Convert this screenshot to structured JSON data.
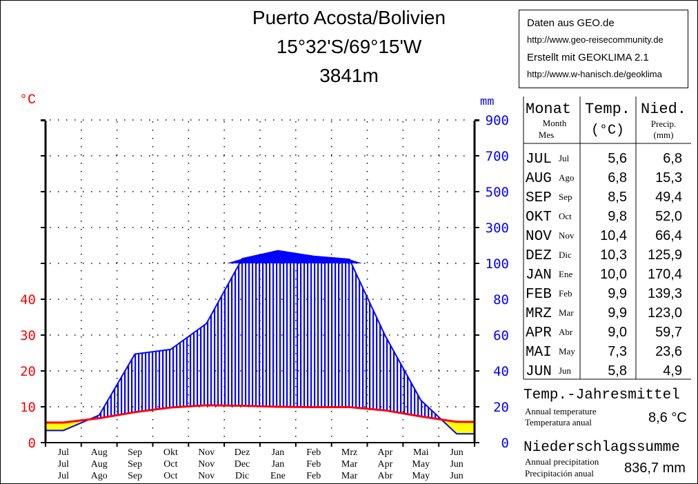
{
  "header": {
    "station": "Puerto Acosta/Bolivien",
    "coordinates": "15°32'S/69°15'W",
    "elevation": "3841m"
  },
  "credit": {
    "line1": "Daten aus GEO.de",
    "line2": "http://www.geo-reisecommunity.de",
    "line3": "Erstellt mit GEOKLIMA 2.1",
    "line4": "http://www.w-hanisch.de/geoklima"
  },
  "axes": {
    "left_unit": "°C",
    "right_unit": "mm",
    "temp_ticks": [
      "0",
      "10",
      "20",
      "30",
      "40"
    ],
    "precip_ticks": [
      "0",
      "20",
      "40",
      "60",
      "80",
      "100",
      "300",
      "500",
      "700",
      "900"
    ]
  },
  "months_de": [
    "Jul",
    "Aug",
    "Sep",
    "Okt",
    "Nov",
    "Dez",
    "Jan",
    "Feb",
    "Mrz",
    "Apr",
    "Mai",
    "Jun"
  ],
  "months_en": [
    "Jul",
    "Aug",
    "Sep",
    "Oct",
    "Nov",
    "Dec",
    "Jan",
    "Feb",
    "Mar",
    "Apr",
    "May",
    "Jun"
  ],
  "months_es": [
    "Jul",
    "Ago",
    "Sep",
    "Oct",
    "Nov",
    "Dic",
    "Ene",
    "Feb",
    "Mar",
    "Abr",
    "May",
    "Jun"
  ],
  "months_table": [
    "JUL",
    "AUG",
    "SEP",
    "OKT",
    "NOV",
    "DEZ",
    "JAN",
    "FEB",
    "MRZ",
    "APR",
    "MAI",
    "JUN"
  ],
  "table": {
    "col1": "Monat",
    "col1_sub1": "Month",
    "col1_sub2": "Mes",
    "col2": "Temp.",
    "col2_unit": "(°C)",
    "col3": "Nied.",
    "col3_sub1": "Precip.",
    "col3_sub2": "(mm)",
    "temps": [
      "5,6",
      "6,8",
      "8,5",
      "9,8",
      "10,4",
      "10,3",
      "10,0",
      "9,9",
      "9,9",
      "9,0",
      "7,3",
      "5,8"
    ],
    "precips": [
      "6,8",
      "15,3",
      "49,4",
      "52,0",
      "66,4",
      "125,9",
      "170,4",
      "139,3",
      "123,0",
      "59,7",
      "23,6",
      "4,9"
    ]
  },
  "summary": {
    "temp_label": "Temp.-Jahresmittel",
    "temp_sub1": "Annual temperature",
    "temp_sub2": "Temperatura  anual",
    "temp_value": "8,6 °C",
    "precip_label": "Niederschlagssumme",
    "precip_sub1": "Annual precipitation",
    "precip_sub2": "Precipitación  anual",
    "precip_value": "836,7 mm"
  },
  "colors": {
    "temperature": "#ff0000",
    "precipitation": "#0000ff",
    "arid": "#ffff00",
    "humid_hatch": "#0000ff",
    "temp_axis_text": "#ff0000",
    "precip_axis_text": "#0000ff"
  },
  "chart_data": {
    "type": "line",
    "categories": [
      "Jul",
      "Aug",
      "Sep",
      "Oct",
      "Nov",
      "Dec",
      "Jan",
      "Feb",
      "Mar",
      "Apr",
      "May",
      "Jun"
    ],
    "series": [
      {
        "name": "Temp.",
        "unit": "°C",
        "axis": "left",
        "values": [
          5.6,
          6.8,
          8.5,
          9.8,
          10.4,
          10.3,
          10.0,
          9.9,
          9.9,
          9.0,
          7.3,
          5.8
        ]
      },
      {
        "name": "Nied.",
        "unit": "mm",
        "axis": "right",
        "values": [
          6.8,
          15.3,
          49.4,
          52.0,
          66.4,
          125.9,
          170.4,
          139.3,
          123.0,
          59.7,
          23.6,
          4.9
        ]
      }
    ],
    "ylim_left": [
      0,
      40
    ],
    "ylim_right": [
      0,
      900
    ],
    "right_axis_scale": "linear 0-100 mm (2 mm per °C), compressed above 100 mm",
    "grid": true,
    "legend": "none"
  }
}
